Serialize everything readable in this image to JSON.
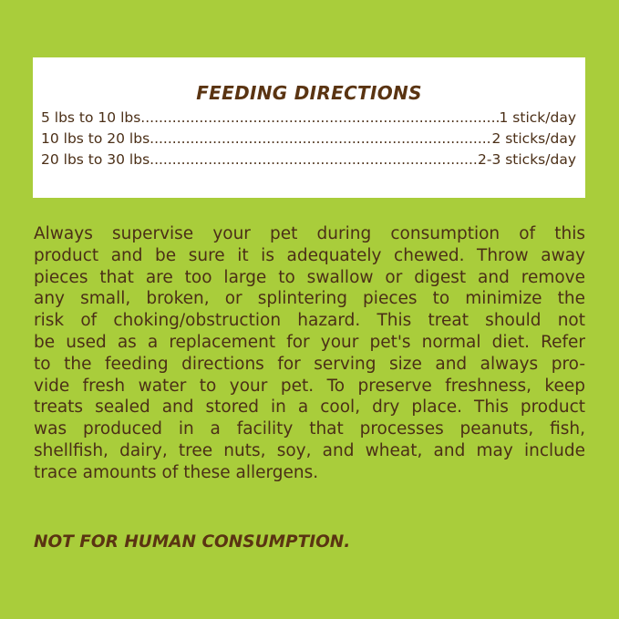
{
  "feeding": {
    "title": "FEEDING DIRECTIONS",
    "rows": [
      {
        "weight": "5 lbs to 10 lbs",
        "amount": "1 stick/day"
      },
      {
        "weight": "10 lbs to 20 lbs",
        "amount": "2 sticks/day"
      },
      {
        "weight": "20 lbs to 30 lbs",
        "amount": "2-3 sticks/day"
      }
    ]
  },
  "paragraph": {
    "lines": [
      "Always supervise your pet during consumption of this",
      "product and be sure it is adequately chewed. Throw away",
      "pieces that are too large to swallow or digest and remove",
      "any small, broken, or splintering pieces to minimize the",
      "risk of choking/obstruction hazard. This treat should not",
      "be used as a replacement for your pet's normal diet. Refer",
      "to the feeding directions for serving size and always pro-",
      "vide fresh water to your pet. To preserve freshness, keep",
      "treats sealed and stored in a cool, dry place. This product",
      "was produced in a facility that processes peanuts, fish,",
      "shellfish, dairy, tree nuts, soy, and wheat, and may include",
      "trace amounts of these allergens."
    ]
  },
  "warning": "NOT FOR HUMAN CONSUMPTION.",
  "colors": {
    "background": "#a9cd3b",
    "text": "#4b2f17",
    "heading": "#5a3412"
  }
}
